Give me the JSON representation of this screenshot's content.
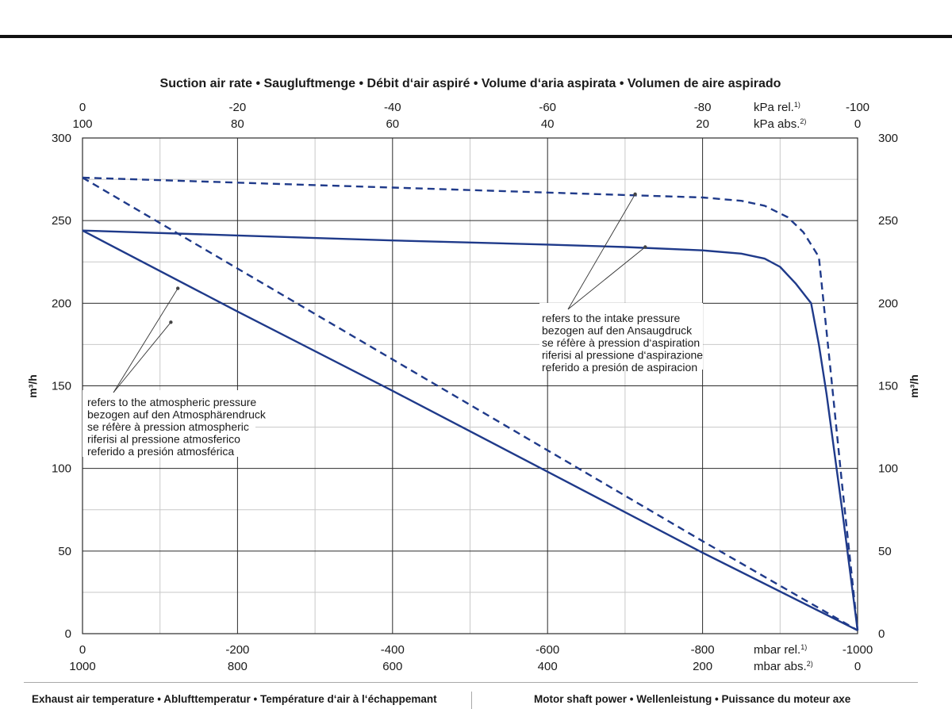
{
  "chart_data": {
    "type": "line",
    "title": "Suction air rate  •  Saugluftmenge  •  Débit d‘air aspiré  •  Volume d‘aria aspirata  •  Volumen de aire aspirado",
    "ylabel": "m³/h",
    "ylim": [
      0,
      300
    ],
    "y_ticks": [
      0,
      50,
      100,
      150,
      200,
      250,
      300
    ],
    "grid": true,
    "x_axis_bottom": {
      "xlim": [
        0,
        -1000
      ],
      "rel_ticks": [
        "0",
        "-200",
        "-400",
        "-600",
        "-800",
        "-1000"
      ],
      "abs_ticks": [
        "1000",
        "800",
        "600",
        "400",
        "200",
        "0"
      ],
      "unit_rel": "mbar rel.",
      "unit_rel_note": "1)",
      "unit_abs": "mbar abs.",
      "unit_abs_note": "2)"
    },
    "x_axis_top": {
      "rel_ticks": [
        "0",
        "-20",
        "-40",
        "-60",
        "-80",
        "-100"
      ],
      "abs_ticks": [
        "100",
        "80",
        "60",
        "40",
        "20",
        "0"
      ],
      "unit_rel": "kPa rel.",
      "unit_rel_note": "1)",
      "unit_abs": "kPa abs.",
      "unit_abs_note": "2)"
    },
    "series": [
      {
        "style": "solid",
        "color": "#1f3a8a",
        "x": [
          0,
          -200,
          -400,
          -600,
          -800,
          -1000
        ],
        "y": [
          244,
          195,
          147,
          98,
          49,
          2
        ]
      },
      {
        "style": "solid",
        "color": "#1f3a8a",
        "x": [
          0,
          -200,
          -400,
          -600,
          -700,
          -800,
          -850,
          -880,
          -900,
          -920,
          -940,
          -950,
          -960,
          -980,
          -1000
        ],
        "y": [
          244,
          241,
          238,
          235.5,
          234,
          232,
          230,
          227,
          222,
          212,
          200,
          175,
          145,
          75,
          2
        ]
      },
      {
        "style": "dashed",
        "color": "#1f3a8a",
        "x": [
          0,
          -200,
          -400,
          -600,
          -800,
          -1000
        ],
        "y": [
          276,
          221,
          166,
          111,
          56,
          2
        ]
      },
      {
        "style": "dashed",
        "color": "#1f3a8a",
        "x": [
          0,
          -200,
          -400,
          -600,
          -700,
          -800,
          -850,
          -880,
          -910,
          -930,
          -950,
          -965,
          -980,
          -1000
        ],
        "y": [
          276,
          273,
          270,
          267,
          265.5,
          264,
          262,
          259,
          252,
          243,
          228,
          160,
          90,
          2
        ]
      }
    ],
    "annotations": [
      {
        "lines": [
          "refers to the atmospheric pressure",
          "bezogen auf den Atmosphärendruck",
          "se réfère à pression atmospheric",
          "riferisi al pressione atmosferico",
          "referido a presión atmosférica"
        ],
        "pointers": [
          {
            "x": -123,
            "y": 209
          },
          {
            "x": -114,
            "y": 188.5
          }
        ]
      },
      {
        "lines": [
          "refers to the intake pressure",
          "bezogen auf den Ansaugdruck",
          "se réfère à pression d‘aspiration",
          "riferisi al pressione d‘aspirazione",
          "referido a presión de aspiracion"
        ],
        "pointers": [
          {
            "x": -713,
            "y": 266
          },
          {
            "x": -726,
            "y": 234
          }
        ]
      }
    ],
    "legend": "none"
  },
  "footer": {
    "left": "Exhaust air temperature  •  Ablufttemperatur  •  Température d‘air à l‘échappemant",
    "right": "Motor shaft power  •  Wellenleistung  •  Puissance du moteur axe"
  }
}
